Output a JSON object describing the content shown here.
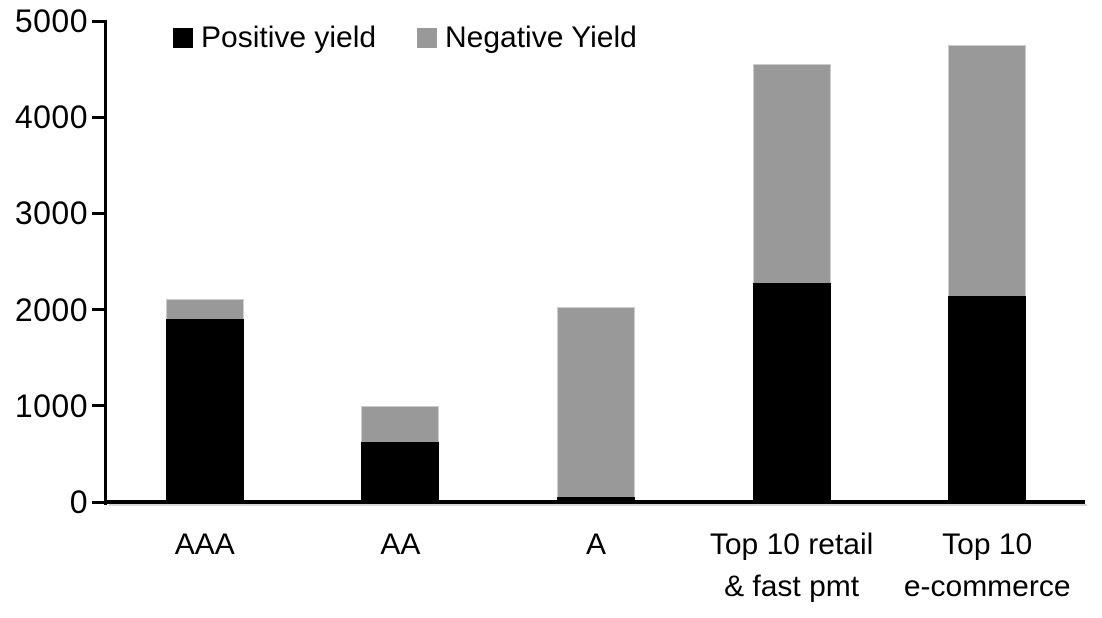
{
  "chart_data": {
    "type": "bar",
    "stacked": true,
    "title": "",
    "xlabel": "",
    "ylabel": "",
    "categories": [
      [
        "AAA"
      ],
      [
        "AA"
      ],
      [
        "A"
      ],
      [
        "Top 10 retail",
        "& fast pmt"
      ],
      [
        "Top 10",
        "e-commerce"
      ]
    ],
    "series": [
      {
        "name": "Positive yield",
        "color": "#000000",
        "values": [
          1900,
          620,
          50,
          2280,
          2140
        ]
      },
      {
        "name": "Negative Yield",
        "color": "#999999",
        "values": [
          210,
          380,
          1980,
          2270,
          2610
        ]
      }
    ],
    "totals": [
      2110,
      1000,
      2030,
      4550,
      4750
    ],
    "ylim": [
      0,
      5000
    ],
    "yticks": [
      "0",
      "1000",
      "2000",
      "3000",
      "4000",
      "5000"
    ],
    "grid": false,
    "legend_position": "top",
    "axis_color": "#000000",
    "background_color": "#ffffff"
  }
}
